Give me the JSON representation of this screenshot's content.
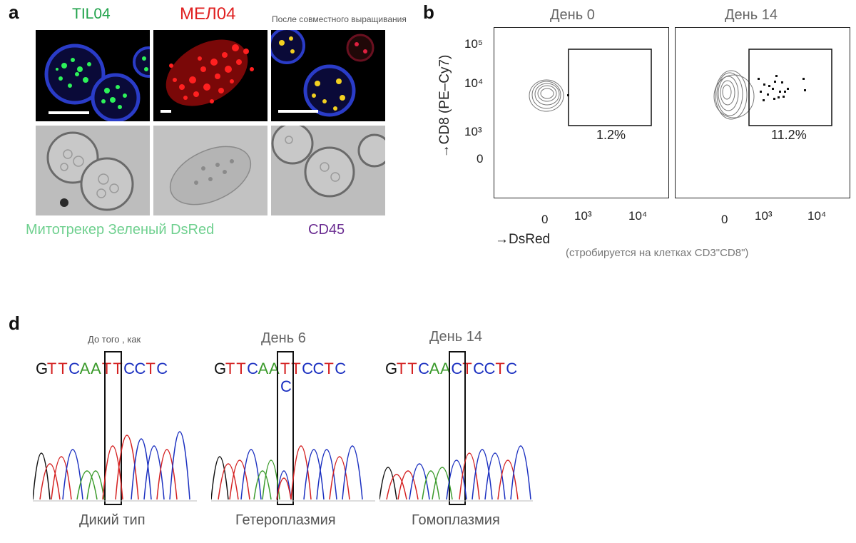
{
  "panel_a": {
    "letter": "a",
    "titles": [
      "TIL04",
      "МЕЛ04",
      "После совместного выращивания"
    ],
    "bottom_labels": [
      "Митотрекер Зеленый DsRed",
      "CD45"
    ]
  },
  "panel_b": {
    "letter": "b",
    "plot_titles": [
      "День 0",
      "День 14"
    ],
    "y_axis_label": "→CD8 (PE–Cy7)",
    "x_axis_label": "→DsRed",
    "y_ticks": [
      "10⁵",
      "10⁴",
      "10³",
      "0"
    ],
    "x_ticks": [
      "0",
      "10³",
      "10⁴"
    ],
    "gate_percents": [
      "1.2%",
      "11.2%"
    ],
    "gating_note": "(стробируется на клетках CD3\"CD8\")"
  },
  "panel_d": {
    "letter": "d",
    "traces": [
      {
        "title": "До того , как",
        "sequence": [
          "G",
          "T",
          "T",
          "C",
          "A",
          "A",
          "T",
          "T",
          "C",
          "C",
          "T",
          "C"
        ],
        "extra_base": "",
        "caption": "Дикий тип"
      },
      {
        "title": "День 6",
        "sequence": [
          "G",
          "T",
          "T",
          "C",
          "A",
          "A",
          "T",
          "T",
          "C",
          "C",
          "T",
          "C"
        ],
        "extra_base": "C",
        "caption": "Гетероплазмия"
      },
      {
        "title": "День 14",
        "sequence": [
          "G",
          "T",
          "T",
          "C",
          "A",
          "A",
          "C",
          "T",
          "C",
          "C",
          "T",
          "C"
        ],
        "extra_base": "",
        "caption": "Гомоплазмия"
      }
    ],
    "base_colors": {
      "G": "#111111",
      "T": "#d42020",
      "C": "#1a2fc0",
      "A": "#3a9a2a"
    }
  }
}
